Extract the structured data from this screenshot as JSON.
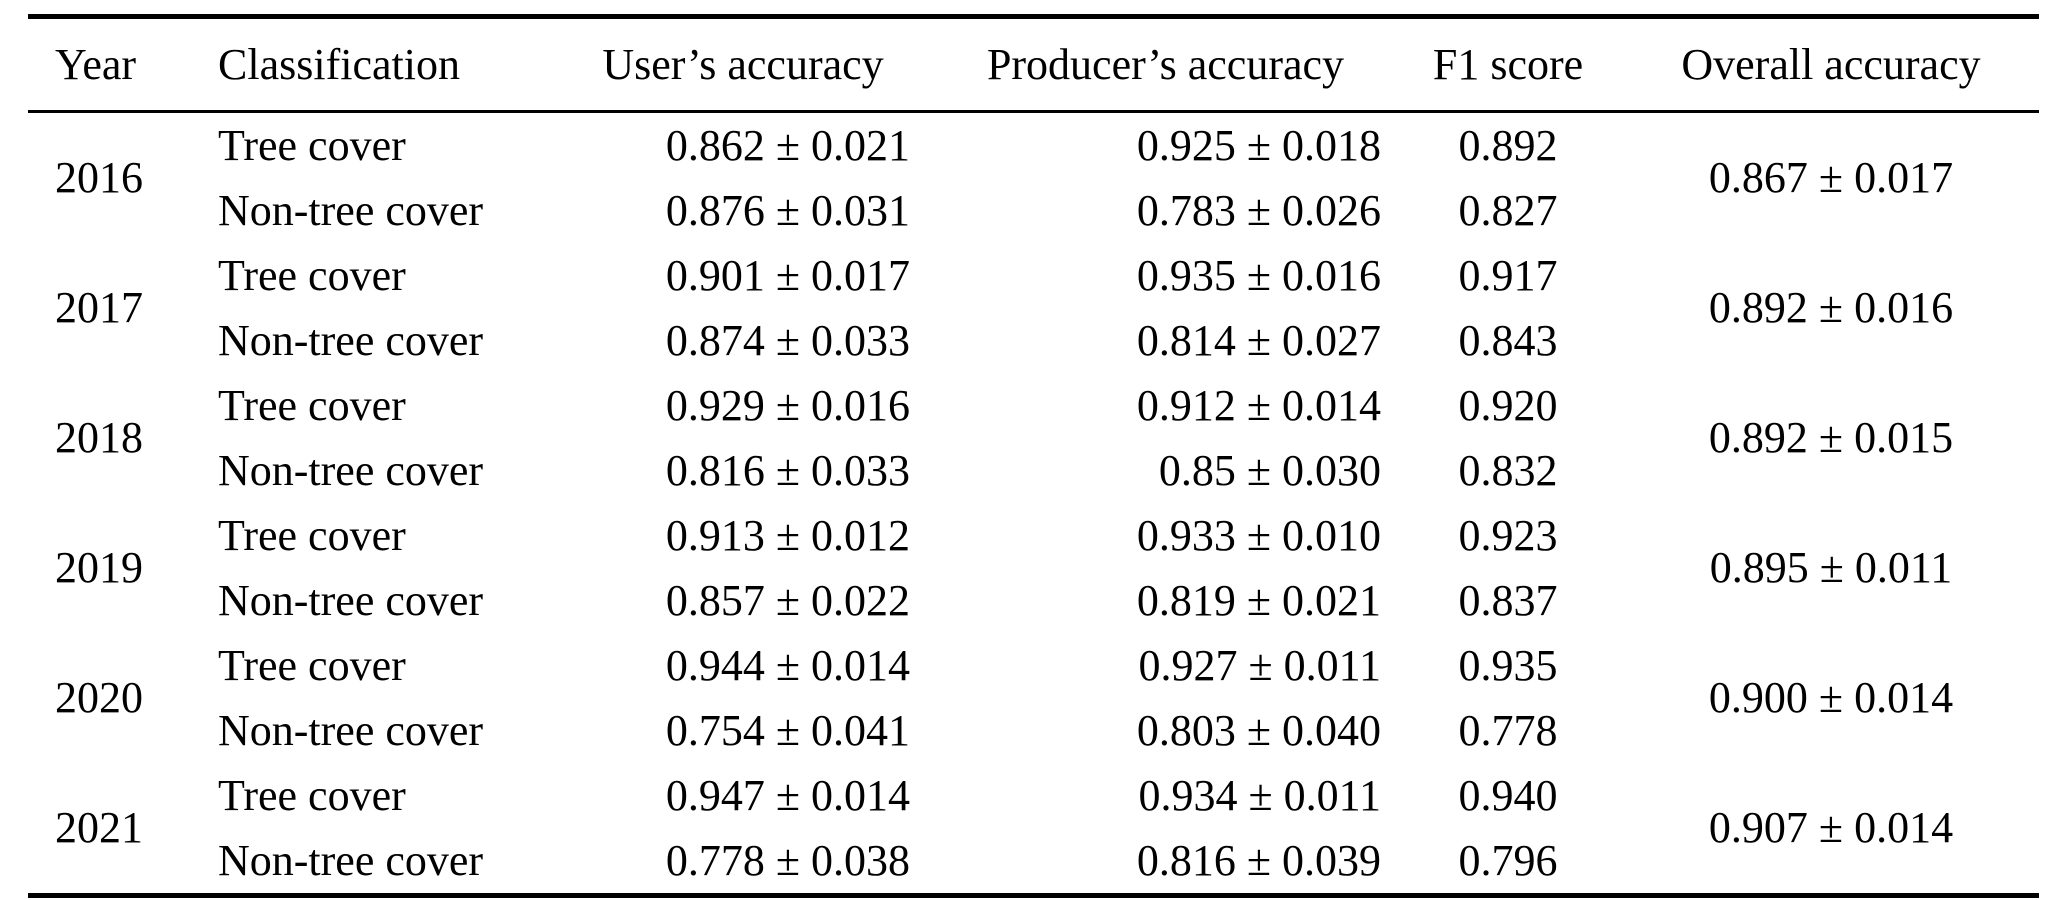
{
  "table": {
    "columns": {
      "year": "Year",
      "classification": "Classification",
      "users_accuracy": "User’s accuracy",
      "producers_accuracy": "Producer’s accuracy",
      "f1_score": "F1 score",
      "overall_accuracy": "Overall accuracy"
    },
    "groups": [
      {
        "year": "2016",
        "overall": "0.867 ± 0.017",
        "rows": [
          {
            "classification": "Tree cover",
            "users": "0.862 ± 0.021",
            "producers": "0.925 ± 0.018",
            "f1": "0.892"
          },
          {
            "classification": "Non-tree cover",
            "users": "0.876 ± 0.031",
            "producers": "0.783 ± 0.026",
            "f1": "0.827"
          }
        ]
      },
      {
        "year": "2017",
        "overall": "0.892 ± 0.016",
        "rows": [
          {
            "classification": "Tree cover",
            "users": "0.901 ± 0.017",
            "producers": "0.935 ± 0.016",
            "f1": "0.917"
          },
          {
            "classification": "Non-tree cover",
            "users": "0.874 ± 0.033",
            "producers": "0.814 ± 0.027",
            "f1": "0.843"
          }
        ]
      },
      {
        "year": "2018",
        "overall": "0.892 ± 0.015",
        "rows": [
          {
            "classification": "Tree cover",
            "users": "0.929 ± 0.016",
            "producers": "0.912 ± 0.014",
            "f1": "0.920"
          },
          {
            "classification": "Non-tree cover",
            "users": "0.816 ± 0.033",
            "producers": "0.85 ± 0.030",
            "f1": "0.832"
          }
        ]
      },
      {
        "year": "2019",
        "overall": "0.895 ± 0.011",
        "rows": [
          {
            "classification": "Tree cover",
            "users": "0.913 ± 0.012",
            "producers": "0.933 ± 0.010",
            "f1": "0.923"
          },
          {
            "classification": "Non-tree cover",
            "users": "0.857 ± 0.022",
            "producers": "0.819 ± 0.021",
            "f1": "0.837"
          }
        ]
      },
      {
        "year": "2020",
        "overall": "0.900 ± 0.014",
        "rows": [
          {
            "classification": "Tree cover",
            "users": "0.944 ± 0.014",
            "producers": "0.927 ± 0.011",
            "f1": "0.935"
          },
          {
            "classification": "Non-tree cover",
            "users": "0.754 ± 0.041",
            "producers": "0.803 ± 0.040",
            "f1": "0.778"
          }
        ]
      },
      {
        "year": "2021",
        "overall": "0.907 ± 0.014",
        "rows": [
          {
            "classification": "Tree cover",
            "users": "0.947 ± 0.014",
            "producers": "0.934 ± 0.011",
            "f1": "0.940"
          },
          {
            "classification": "Non-tree cover",
            "users": "0.778 ± 0.038",
            "producers": "0.816 ± 0.039",
            "f1": "0.796"
          }
        ]
      }
    ],
    "colors": {
      "text": "#000000",
      "background": "#ffffff",
      "rule": "#000000"
    }
  }
}
